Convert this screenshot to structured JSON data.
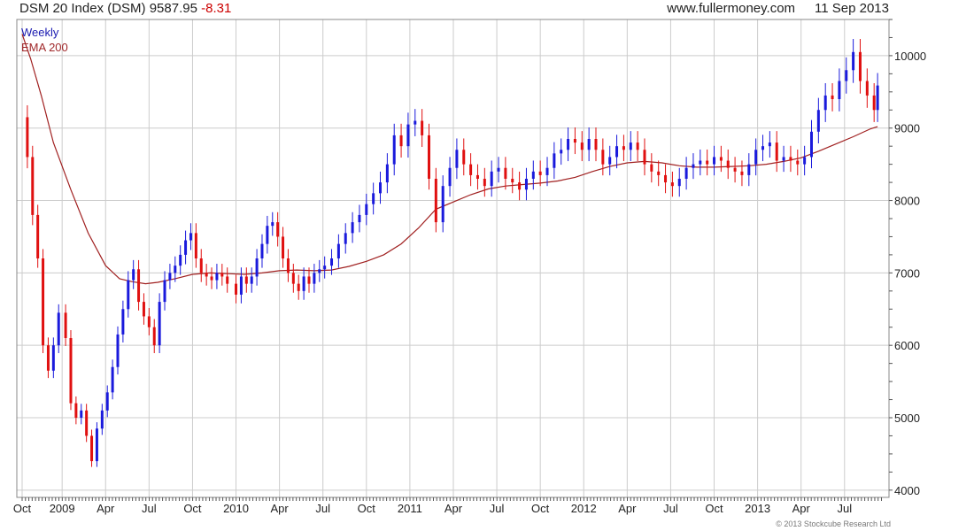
{
  "header": {
    "title": "DSM 20 Index (DSM)",
    "last": "9587.95",
    "change": "-8.31",
    "site": "www.fullermoney.com",
    "date": "11 Sep 2013"
  },
  "legend": {
    "period": "Weekly",
    "ema": "EMA 200"
  },
  "copyright": "© 2013 Stockcube Research Ltd",
  "colors": {
    "up": "#1a1adc",
    "down": "#e01010",
    "ema": "#a02020",
    "grid": "#cccccc"
  },
  "chart_data": {
    "type": "candlestick",
    "title": "DSM 20 Index (DSM) 9587.95 -8.31",
    "periodicity": "Weekly",
    "ylim": [
      3900,
      10500
    ],
    "yticks": [
      4000,
      5000,
      6000,
      7000,
      8000,
      9000,
      10000
    ],
    "x_range": [
      2008.77,
      2013.72
    ],
    "xticks": [
      {
        "label": "Oct",
        "t": 2008.77
      },
      {
        "label": "2009",
        "t": 2009.0
      },
      {
        "label": "Apr",
        "t": 2009.25
      },
      {
        "label": "Jul",
        "t": 2009.5
      },
      {
        "label": "Oct",
        "t": 2009.75
      },
      {
        "label": "2010",
        "t": 2010.0
      },
      {
        "label": "Apr",
        "t": 2010.25
      },
      {
        "label": "Jul",
        "t": 2010.5
      },
      {
        "label": "Oct",
        "t": 2010.75
      },
      {
        "label": "2011",
        "t": 2011.0
      },
      {
        "label": "Apr",
        "t": 2011.25
      },
      {
        "label": "Jul",
        "t": 2011.5
      },
      {
        "label": "Oct",
        "t": 2011.75
      },
      {
        "label": "2012",
        "t": 2012.0
      },
      {
        "label": "Apr",
        "t": 2012.25
      },
      {
        "label": "Jul",
        "t": 2012.5
      },
      {
        "label": "Oct",
        "t": 2012.75
      },
      {
        "label": "2013",
        "t": 2013.0
      },
      {
        "label": "Apr",
        "t": 2013.25
      },
      {
        "label": "Jul",
        "t": 2013.5
      }
    ],
    "close_series": [
      [
        2008.77,
        9150
      ],
      [
        2008.8,
        8600
      ],
      [
        2008.83,
        7800
      ],
      [
        2008.86,
        7200
      ],
      [
        2008.89,
        6000
      ],
      [
        2008.92,
        5650
      ],
      [
        2008.95,
        6000
      ],
      [
        2008.98,
        6450
      ],
      [
        2009.02,
        6100
      ],
      [
        2009.05,
        5200
      ],
      [
        2009.08,
        5000
      ],
      [
        2009.11,
        5100
      ],
      [
        2009.14,
        4750
      ],
      [
        2009.17,
        4400
      ],
      [
        2009.2,
        4850
      ],
      [
        2009.23,
        5100
      ],
      [
        2009.26,
        5350
      ],
      [
        2009.29,
        5700
      ],
      [
        2009.32,
        6150
      ],
      [
        2009.35,
        6500
      ],
      [
        2009.38,
        6900
      ],
      [
        2009.41,
        7050
      ],
      [
        2009.44,
        6600
      ],
      [
        2009.47,
        6400
      ],
      [
        2009.5,
        6250
      ],
      [
        2009.53,
        6000
      ],
      [
        2009.56,
        6600
      ],
      [
        2009.59,
        6900
      ],
      [
        2009.62,
        7000
      ],
      [
        2009.65,
        7100
      ],
      [
        2009.68,
        7250
      ],
      [
        2009.71,
        7450
      ],
      [
        2009.74,
        7550
      ],
      [
        2009.77,
        7200
      ],
      [
        2009.8,
        7000
      ],
      [
        2009.83,
        6950
      ],
      [
        2009.86,
        6900
      ],
      [
        2009.89,
        7000
      ],
      [
        2009.92,
        6950
      ],
      [
        2009.95,
        6850
      ],
      [
        2010.0,
        6700
      ],
      [
        2010.03,
        6950
      ],
      [
        2010.06,
        6850
      ],
      [
        2010.09,
        6950
      ],
      [
        2010.12,
        7200
      ],
      [
        2010.15,
        7400
      ],
      [
        2010.18,
        7650
      ],
      [
        2010.21,
        7700
      ],
      [
        2010.24,
        7500
      ],
      [
        2010.27,
        7200
      ],
      [
        2010.3,
        7000
      ],
      [
        2010.33,
        6850
      ],
      [
        2010.36,
        6750
      ],
      [
        2010.39,
        6950
      ],
      [
        2010.42,
        6850
      ],
      [
        2010.45,
        7000
      ],
      [
        2010.48,
        7050
      ],
      [
        2010.51,
        7100
      ],
      [
        2010.55,
        7200
      ],
      [
        2010.59,
        7400
      ],
      [
        2010.63,
        7550
      ],
      [
        2010.67,
        7700
      ],
      [
        2010.71,
        7800
      ],
      [
        2010.75,
        7950
      ],
      [
        2010.79,
        8100
      ],
      [
        2010.83,
        8250
      ],
      [
        2010.87,
        8500
      ],
      [
        2010.91,
        8900
      ],
      [
        2010.95,
        8750
      ],
      [
        2010.99,
        9050
      ],
      [
        2011.03,
        9100
      ],
      [
        2011.07,
        8900
      ],
      [
        2011.11,
        8300
      ],
      [
        2011.15,
        7700
      ],
      [
        2011.19,
        8200
      ],
      [
        2011.23,
        8450
      ],
      [
        2011.27,
        8700
      ],
      [
        2011.31,
        8500
      ],
      [
        2011.35,
        8350
      ],
      [
        2011.39,
        8300
      ],
      [
        2011.43,
        8200
      ],
      [
        2011.47,
        8400
      ],
      [
        2011.51,
        8450
      ],
      [
        2011.55,
        8300
      ],
      [
        2011.59,
        8250
      ],
      [
        2011.63,
        8150
      ],
      [
        2011.67,
        8300
      ],
      [
        2011.71,
        8400
      ],
      [
        2011.75,
        8350
      ],
      [
        2011.79,
        8450
      ],
      [
        2011.83,
        8650
      ],
      [
        2011.87,
        8700
      ],
      [
        2011.91,
        8850
      ],
      [
        2011.95,
        8800
      ],
      [
        2011.99,
        8700
      ],
      [
        2012.03,
        8850
      ],
      [
        2012.07,
        8700
      ],
      [
        2012.11,
        8500
      ],
      [
        2012.15,
        8600
      ],
      [
        2012.19,
        8750
      ],
      [
        2012.23,
        8700
      ],
      [
        2012.27,
        8800
      ],
      [
        2012.31,
        8700
      ],
      [
        2012.35,
        8500
      ],
      [
        2012.39,
        8400
      ],
      [
        2012.43,
        8350
      ],
      [
        2012.47,
        8250
      ],
      [
        2012.51,
        8200
      ],
      [
        2012.55,
        8300
      ],
      [
        2012.59,
        8450
      ],
      [
        2012.63,
        8500
      ],
      [
        2012.67,
        8550
      ],
      [
        2012.71,
        8500
      ],
      [
        2012.75,
        8600
      ],
      [
        2012.79,
        8550
      ],
      [
        2012.83,
        8450
      ],
      [
        2012.87,
        8400
      ],
      [
        2012.91,
        8350
      ],
      [
        2012.95,
        8500
      ],
      [
        2012.99,
        8700
      ],
      [
        2013.03,
        8750
      ],
      [
        2013.07,
        8800
      ],
      [
        2013.11,
        8550
      ],
      [
        2013.15,
        8600
      ],
      [
        2013.19,
        8550
      ],
      [
        2013.23,
        8500
      ],
      [
        2013.27,
        8600
      ],
      [
        2013.31,
        8950
      ],
      [
        2013.35,
        9250
      ],
      [
        2013.39,
        9450
      ],
      [
        2013.43,
        9400
      ],
      [
        2013.47,
        9650
      ],
      [
        2013.51,
        9800
      ],
      [
        2013.55,
        10050
      ],
      [
        2013.59,
        9650
      ],
      [
        2013.63,
        9450
      ],
      [
        2013.67,
        9250
      ],
      [
        2013.69,
        9588
      ]
    ],
    "ema_200": [
      [
        2008.77,
        10300
      ],
      [
        2008.82,
        9950
      ],
      [
        2008.88,
        9450
      ],
      [
        2008.95,
        8800
      ],
      [
        2009.05,
        8150
      ],
      [
        2009.15,
        7550
      ],
      [
        2009.25,
        7100
      ],
      [
        2009.33,
        6920
      ],
      [
        2009.4,
        6880
      ],
      [
        2009.48,
        6850
      ],
      [
        2009.55,
        6870
      ],
      [
        2009.65,
        6920
      ],
      [
        2009.75,
        6980
      ],
      [
        2009.85,
        7000
      ],
      [
        2009.95,
        6990
      ],
      [
        2010.05,
        6980
      ],
      [
        2010.15,
        7000
      ],
      [
        2010.25,
        7030
      ],
      [
        2010.35,
        7040
      ],
      [
        2010.45,
        7030
      ],
      [
        2010.55,
        7040
      ],
      [
        2010.65,
        7090
      ],
      [
        2010.75,
        7160
      ],
      [
        2010.85,
        7250
      ],
      [
        2010.95,
        7400
      ],
      [
        2011.05,
        7620
      ],
      [
        2011.15,
        7880
      ],
      [
        2011.25,
        7980
      ],
      [
        2011.35,
        8080
      ],
      [
        2011.45,
        8160
      ],
      [
        2011.55,
        8200
      ],
      [
        2011.65,
        8220
      ],
      [
        2011.75,
        8240
      ],
      [
        2011.85,
        8270
      ],
      [
        2011.95,
        8320
      ],
      [
        2012.05,
        8400
      ],
      [
        2012.15,
        8470
      ],
      [
        2012.25,
        8520
      ],
      [
        2012.35,
        8540
      ],
      [
        2012.45,
        8520
      ],
      [
        2012.55,
        8480
      ],
      [
        2012.65,
        8460
      ],
      [
        2012.75,
        8460
      ],
      [
        2012.85,
        8470
      ],
      [
        2012.95,
        8480
      ],
      [
        2013.05,
        8500
      ],
      [
        2013.15,
        8540
      ],
      [
        2013.25,
        8590
      ],
      [
        2013.35,
        8680
      ],
      [
        2013.45,
        8780
      ],
      [
        2013.55,
        8880
      ],
      [
        2013.65,
        8990
      ],
      [
        2013.69,
        9020
      ]
    ]
  }
}
